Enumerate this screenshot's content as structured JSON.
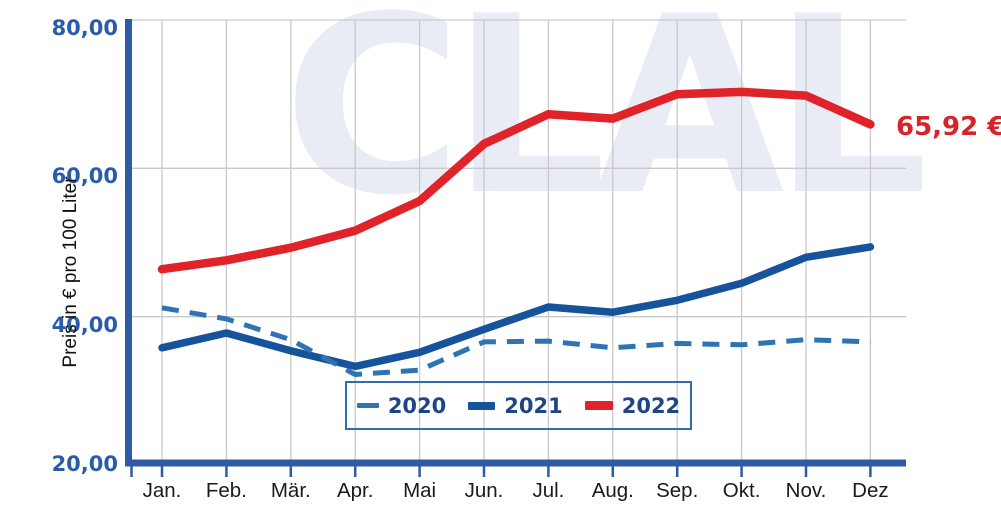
{
  "watermark": {
    "text": "CLAL"
  },
  "colors": {
    "axis": "#2d5ba5",
    "grid": "#c9c9c9",
    "y_tick_label": "#2b5ca9",
    "x_tick_label": "#1a1a1a",
    "legend_border": "#2f6cb0",
    "legend_text": "#1e4586",
    "watermark": "#e9ecf5",
    "annotation": "#d8232b"
  },
  "chart_data": {
    "type": "line",
    "title": "",
    "xlabel": "",
    "ylabel": "Preis in € pro 100 Liter",
    "x_categories": [
      "Jan.",
      "Feb.",
      "Mär.",
      "Apr.",
      "Mai",
      "Jun.",
      "Jul.",
      "Aug.",
      "Sep.",
      "Okt.",
      "Nov.",
      "Dez"
    ],
    "ylim": [
      20,
      80
    ],
    "y_ticks": [
      {
        "value": 80,
        "label": "80,00"
      },
      {
        "value": 60,
        "label": "60,00"
      },
      {
        "value": 40,
        "label": "40,00"
      },
      {
        "value": 20,
        "label": "20,00"
      }
    ],
    "grid": true,
    "legend_position": "bottom-center-inside",
    "series": [
      {
        "name": "2020",
        "line_style": "dashed",
        "color": "#2e74b4",
        "values": [
          41.2,
          39.7,
          36.9,
          32.2,
          32.8,
          36.6,
          36.7,
          35.8,
          36.4,
          36.2,
          36.9,
          36.6
        ]
      },
      {
        "name": "2021",
        "line_style": "solid",
        "color": "#17539b",
        "values": [
          35.8,
          37.8,
          35.4,
          33.3,
          35.2,
          38.3,
          41.3,
          40.6,
          42.2,
          44.5,
          48.0,
          49.4
        ]
      },
      {
        "name": "2022",
        "line_style": "solid",
        "color": "#e02229",
        "values": [
          46.4,
          47.6,
          49.3,
          51.6,
          55.6,
          63.3,
          67.3,
          66.7,
          70.0,
          70.3,
          69.8,
          65.92
        ]
      }
    ],
    "annotation": {
      "text": "65,92 €",
      "attached_to": "2022 Dez"
    }
  }
}
